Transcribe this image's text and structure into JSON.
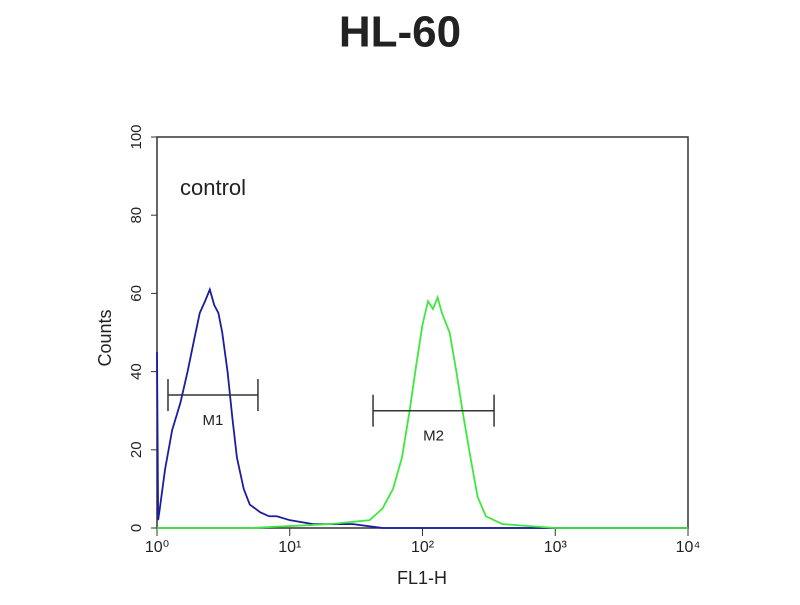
{
  "chart_data": {
    "type": "line",
    "title": "HL-60",
    "x_label": "FL1-H",
    "y_label": "Counts",
    "annotation": "control",
    "xscale": "log",
    "grid": false,
    "xlim": [
      1,
      10000
    ],
    "xticks": [
      {
        "value": 1,
        "label": "10⁰"
      },
      {
        "value": 10,
        "label": "10¹"
      },
      {
        "value": 100,
        "label": "10²"
      },
      {
        "value": 1000,
        "label": "10³"
      },
      {
        "value": 10000,
        "label": "10⁴"
      }
    ],
    "ylim": [
      0,
      100
    ],
    "yticks": [
      0,
      20,
      40,
      60,
      80,
      100
    ],
    "series": [
      {
        "color": "#1c1ca0",
        "x": [
          1.0,
          1.02,
          1.05,
          1.15,
          1.3,
          1.5,
          1.7,
          1.9,
          2.1,
          2.3,
          2.5,
          2.7,
          2.9,
          3.1,
          3.4,
          3.7,
          4.0,
          4.5,
          5,
          6,
          7,
          8,
          10,
          15,
          20,
          30,
          50,
          100,
          200,
          10000
        ],
        "values": [
          45,
          2,
          5,
          15,
          25,
          32,
          40,
          48,
          55,
          58,
          61,
          57,
          55,
          50,
          40,
          28,
          18,
          10,
          6,
          4,
          3,
          3,
          2,
          1,
          1,
          1,
          0,
          0,
          0,
          0
        ]
      },
      {
        "color": "#3ee83e",
        "x": [
          1,
          5,
          20,
          40,
          50,
          60,
          70,
          80,
          90,
          100,
          110,
          120,
          130,
          140,
          160,
          180,
          200,
          230,
          260,
          300,
          400,
          1000,
          10000
        ],
        "values": [
          0,
          0,
          1,
          2,
          5,
          10,
          18,
          30,
          42,
          52,
          58,
          56,
          59,
          55,
          50,
          40,
          30,
          18,
          8,
          3,
          1,
          0,
          0
        ]
      }
    ],
    "markers": [
      {
        "label": "M1",
        "range": [
          1.21,
          5.76
        ],
        "y": 34
      },
      {
        "label": "M2",
        "range": [
          42.4,
          346
        ],
        "y": 30
      }
    ]
  }
}
